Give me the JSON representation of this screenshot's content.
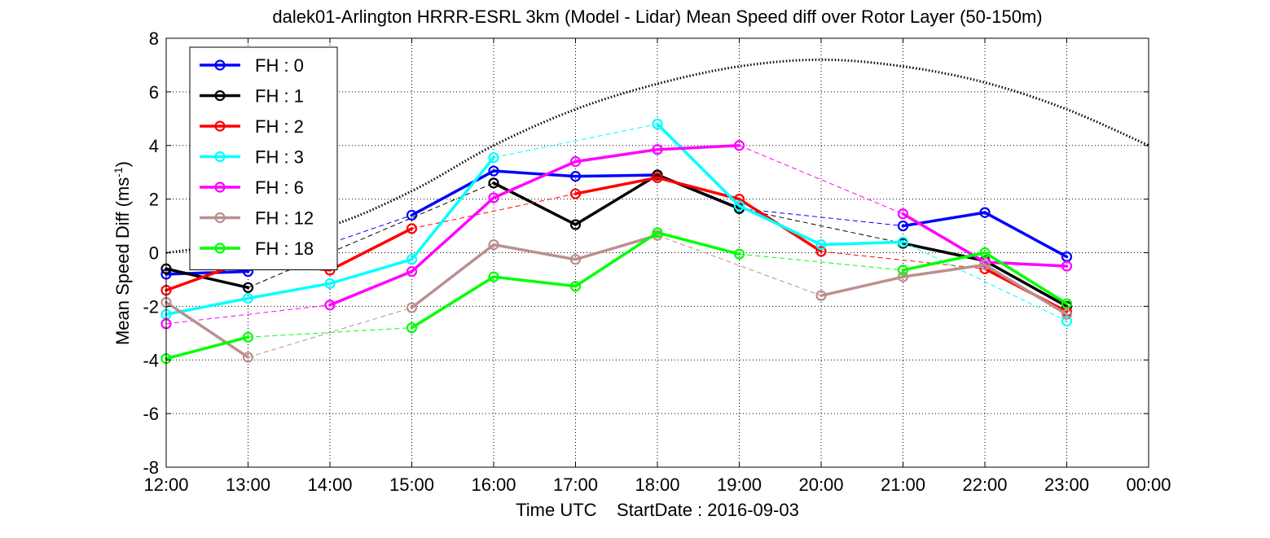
{
  "chart_data": {
    "type": "line",
    "title": "dalek01-Arlington HRRR-ESRL 3km (Model - Lidar) Mean Speed diff over Rotor Layer (50-150m)",
    "xlabel": "Time UTC    StartDate : 2016-09-03",
    "ylabel_main": "Mean Speed Diff (ms",
    "ylabel_sup": "-1",
    "ylabel_close": ")",
    "xlim": [
      12,
      24
    ],
    "ylim": [
      -8,
      8
    ],
    "x_ticks": [
      12,
      13,
      14,
      15,
      16,
      17,
      18,
      19,
      20,
      21,
      22,
      23,
      24
    ],
    "x_tick_labels": [
      "12:00",
      "13:00",
      "14:00",
      "15:00",
      "16:00",
      "17:00",
      "18:00",
      "19:00",
      "20:00",
      "21:00",
      "22:00",
      "23:00",
      "00:00"
    ],
    "y_ticks": [
      -8,
      -6,
      -4,
      -2,
      0,
      2,
      4,
      6,
      8
    ],
    "y_tick_labels": [
      "-8",
      "-6",
      "-4",
      "-2",
      "0",
      "2",
      "4",
      "6",
      "8"
    ],
    "grid": true,
    "legend_position": "top-left",
    "series": [
      {
        "name": "FH : 0",
        "color": "#0000ff",
        "x": [
          12,
          13,
          14,
          15,
          16,
          17,
          18,
          19,
          20,
          21,
          22,
          23
        ],
        "y": [
          -0.8,
          -0.7,
          null,
          1.4,
          3.05,
          2.85,
          2.9,
          1.65,
          null,
          1.0,
          1.5,
          -0.15
        ]
      },
      {
        "name": "FH : 1",
        "color": "#000000",
        "x": [
          12,
          13,
          14,
          15,
          16,
          17,
          18,
          19,
          20,
          21,
          22,
          23
        ],
        "y": [
          -0.6,
          -1.3,
          null,
          null,
          2.6,
          1.05,
          2.9,
          1.65,
          null,
          0.35,
          -0.3,
          -2.0
        ]
      },
      {
        "name": "FH : 2",
        "color": "#ff0000",
        "x": [
          12,
          13,
          14,
          15,
          16,
          17,
          18,
          19,
          20,
          21,
          22,
          23
        ],
        "y": [
          -1.4,
          -0.3,
          -0.65,
          0.9,
          null,
          2.2,
          2.8,
          2.0,
          0.05,
          null,
          -0.6,
          -2.2
        ]
      },
      {
        "name": "FH : 3",
        "color": "#00ffff",
        "x": [
          12,
          13,
          14,
          15,
          16,
          17,
          18,
          19,
          20,
          21,
          22,
          23
        ],
        "y": [
          -2.3,
          -1.7,
          -1.15,
          -0.25,
          3.55,
          null,
          4.8,
          1.75,
          0.3,
          0.4,
          null,
          -2.55
        ]
      },
      {
        "name": "FH : 6",
        "color": "#ff00ff",
        "x": [
          12,
          13,
          14,
          15,
          16,
          17,
          18,
          19,
          20,
          21,
          22,
          23
        ],
        "y": [
          -2.65,
          null,
          -1.95,
          -0.7,
          2.05,
          3.4,
          3.85,
          4.0,
          null,
          1.45,
          -0.35,
          -0.5
        ]
      },
      {
        "name": "FH : 12",
        "color": "#bc8f8f",
        "x": [
          12,
          13,
          14,
          15,
          16,
          17,
          18,
          19,
          20,
          21,
          22,
          23
        ],
        "y": [
          -1.85,
          -3.9,
          null,
          -2.05,
          0.3,
          -0.25,
          0.65,
          null,
          -1.6,
          -0.9,
          -0.45,
          -2.3
        ]
      },
      {
        "name": "FH : 18",
        "color": "#00ff00",
        "x": [
          12,
          13,
          14,
          15,
          16,
          17,
          18,
          19,
          20,
          21,
          22,
          23
        ],
        "y": [
          -3.95,
          -3.15,
          null,
          -2.8,
          -0.9,
          -1.25,
          0.75,
          -0.05,
          null,
          -0.65,
          0.0,
          -1.9
        ]
      }
    ],
    "reference_curve": {
      "style": "dotted",
      "color": "#000000",
      "x": [
        12,
        13,
        14,
        15,
        16,
        17,
        18,
        19,
        20,
        21,
        22,
        23,
        24
      ],
      "y": [
        0.0,
        0.4,
        1.0,
        2.3,
        4.0,
        5.35,
        6.3,
        6.95,
        7.2,
        6.95,
        6.35,
        5.35,
        4.0
      ]
    }
  }
}
